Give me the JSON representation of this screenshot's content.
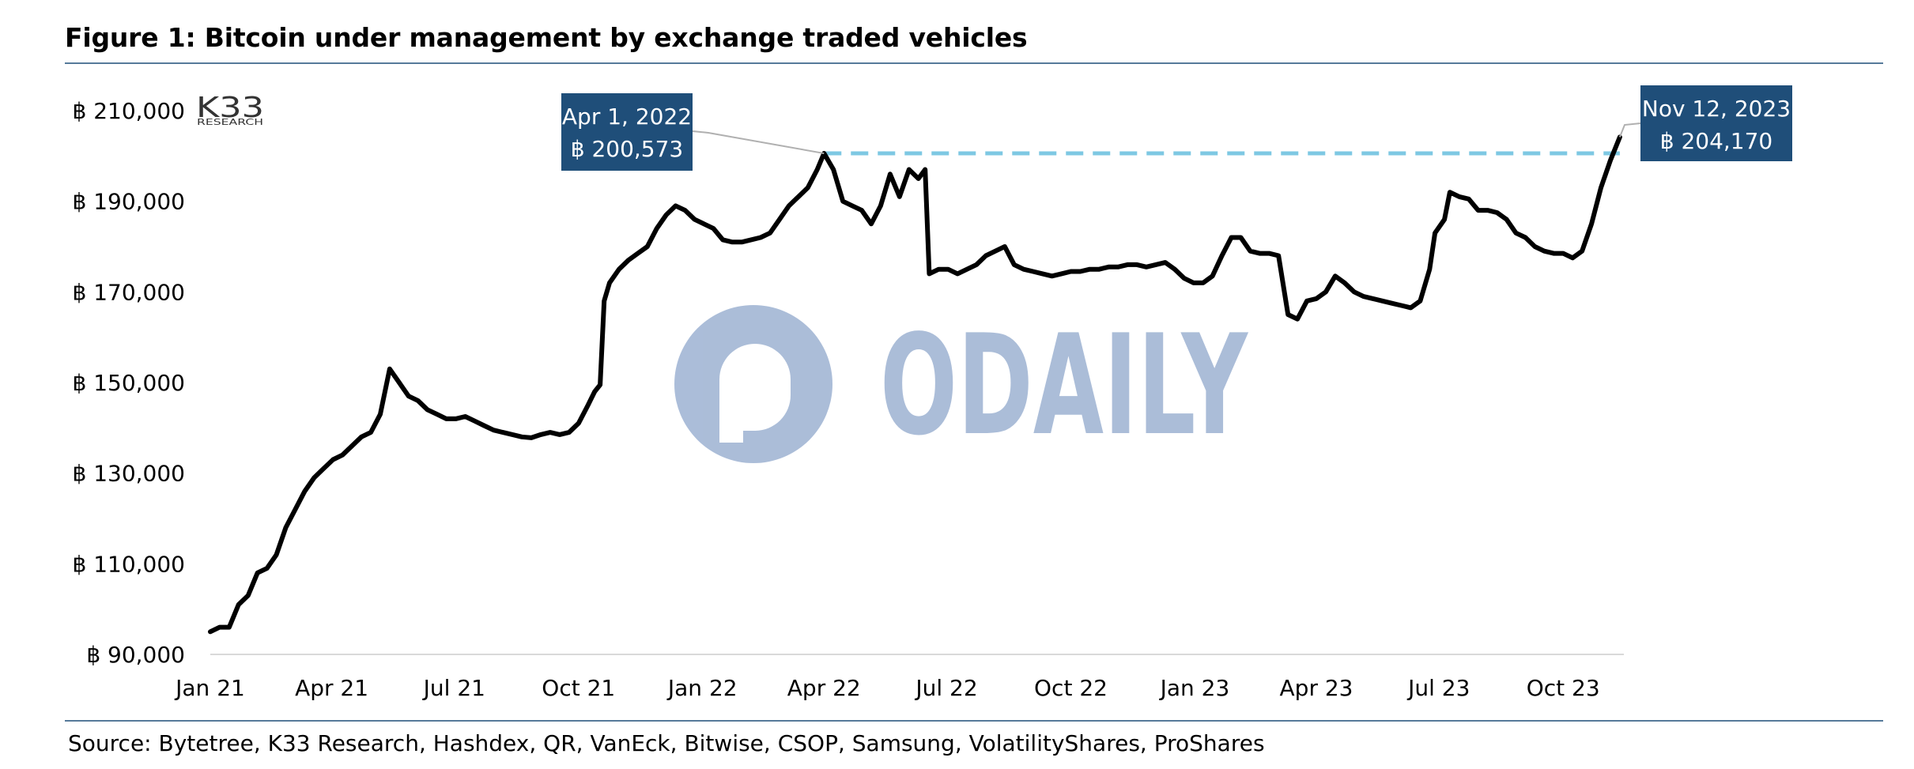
{
  "header": {
    "title": "Figure 1: Bitcoin under management by exchange traded vehicles"
  },
  "footer": {
    "source": "Source: Bytetree, K33 Research, Hashdex, QR, VanEck, Bitwise, CSOP, Samsung, VolatilityShares, ProShares"
  },
  "logo": {
    "brand": "K33",
    "sub": "RESEARCH"
  },
  "watermark": {
    "text": "ODAILY"
  },
  "colors": {
    "line": "#000000",
    "reference_line": "#7ec8e3",
    "callout_bg": "#1f4e79",
    "rule": "#1f4e79",
    "watermark": "#8fa7cc"
  },
  "chart_data": {
    "type": "line",
    "title": "Figure 1: Bitcoin under management by exchange traded vehicles",
    "xlabel": "",
    "ylabel": "",
    "ylim": [
      90000,
      210000
    ],
    "yticks": [
      90000,
      110000,
      130000,
      150000,
      170000,
      190000,
      210000
    ],
    "ytick_labels": [
      "฿ 90,000",
      "฿ 110,000",
      "฿ 130,000",
      "฿ 150,000",
      "฿ 170,000",
      "฿ 190,000",
      "฿ 210,000"
    ],
    "xtick_labels": [
      "Jan 21",
      "Apr 21",
      "Jul 21",
      "Oct 21",
      "Jan 22",
      "Apr 22",
      "Jul 22",
      "Oct 22",
      "Jan 23",
      "Apr 23",
      "Jul 23",
      "Oct 23"
    ],
    "xtick_dates": [
      "2021-01-01",
      "2021-04-01",
      "2021-07-01",
      "2021-10-01",
      "2022-01-01",
      "2022-04-01",
      "2022-07-01",
      "2022-10-01",
      "2023-01-01",
      "2023-04-01",
      "2023-07-01",
      "2023-10-01"
    ],
    "xlim": [
      "2021-01-01",
      "2023-11-15"
    ],
    "grid": false,
    "series": [
      {
        "points": [
          [
            "2021-01-01",
            95000
          ],
          [
            "2021-01-08",
            96000
          ],
          [
            "2021-01-15",
            96000
          ],
          [
            "2021-01-22",
            101000
          ],
          [
            "2021-01-29",
            103000
          ],
          [
            "2021-02-05",
            108000
          ],
          [
            "2021-02-12",
            109000
          ],
          [
            "2021-02-19",
            112000
          ],
          [
            "2021-02-26",
            118000
          ],
          [
            "2021-03-05",
            122000
          ],
          [
            "2021-03-12",
            126000
          ],
          [
            "2021-03-19",
            129000
          ],
          [
            "2021-03-26",
            131000
          ],
          [
            "2021-04-02",
            133000
          ],
          [
            "2021-04-09",
            134000
          ],
          [
            "2021-04-16",
            136000
          ],
          [
            "2021-04-23",
            138000
          ],
          [
            "2021-04-30",
            139000
          ],
          [
            "2021-05-07",
            143000
          ],
          [
            "2021-05-14",
            153000
          ],
          [
            "2021-05-21",
            150000
          ],
          [
            "2021-05-28",
            147000
          ],
          [
            "2021-06-04",
            146000
          ],
          [
            "2021-06-11",
            144000
          ],
          [
            "2021-06-18",
            143000
          ],
          [
            "2021-06-25",
            142000
          ],
          [
            "2021-07-02",
            142000
          ],
          [
            "2021-07-09",
            142500
          ],
          [
            "2021-07-16",
            141500
          ],
          [
            "2021-07-23",
            140500
          ],
          [
            "2021-07-30",
            139500
          ],
          [
            "2021-08-06",
            139000
          ],
          [
            "2021-08-13",
            138500
          ],
          [
            "2021-08-20",
            138000
          ],
          [
            "2021-08-27",
            137800
          ],
          [
            "2021-09-03",
            138500
          ],
          [
            "2021-09-10",
            139000
          ],
          [
            "2021-09-17",
            138500
          ],
          [
            "2021-09-24",
            139000
          ],
          [
            "2021-10-01",
            141000
          ],
          [
            "2021-10-08",
            145000
          ],
          [
            "2021-10-13",
            148000
          ],
          [
            "2021-10-17",
            149500
          ],
          [
            "2021-10-20",
            168000
          ],
          [
            "2021-10-24",
            172000
          ],
          [
            "2021-10-31",
            175000
          ],
          [
            "2021-11-07",
            177000
          ],
          [
            "2021-11-14",
            178500
          ],
          [
            "2021-11-21",
            180000
          ],
          [
            "2021-11-28",
            184000
          ],
          [
            "2021-12-05",
            187000
          ],
          [
            "2021-12-12",
            189000
          ],
          [
            "2021-12-19",
            188000
          ],
          [
            "2021-12-26",
            186000
          ],
          [
            "2022-01-02",
            185000
          ],
          [
            "2022-01-09",
            184000
          ],
          [
            "2022-01-16",
            181500
          ],
          [
            "2022-01-23",
            181000
          ],
          [
            "2022-01-30",
            181000
          ],
          [
            "2022-02-06",
            181500
          ],
          [
            "2022-02-13",
            182000
          ],
          [
            "2022-02-20",
            183000
          ],
          [
            "2022-02-27",
            186000
          ],
          [
            "2022-03-06",
            189000
          ],
          [
            "2022-03-13",
            191000
          ],
          [
            "2022-03-20",
            193000
          ],
          [
            "2022-03-27",
            197000
          ],
          [
            "2022-04-01",
            200573
          ],
          [
            "2022-04-08",
            197000
          ],
          [
            "2022-04-15",
            190000
          ],
          [
            "2022-04-22",
            189000
          ],
          [
            "2022-04-29",
            188000
          ],
          [
            "2022-05-06",
            185000
          ],
          [
            "2022-05-13",
            189000
          ],
          [
            "2022-05-20",
            196000
          ],
          [
            "2022-05-27",
            191000
          ],
          [
            "2022-06-03",
            197000
          ],
          [
            "2022-06-10",
            195000
          ],
          [
            "2022-06-15",
            197000
          ],
          [
            "2022-06-18",
            174000
          ],
          [
            "2022-06-25",
            175000
          ],
          [
            "2022-07-02",
            175000
          ],
          [
            "2022-07-09",
            174000
          ],
          [
            "2022-07-16",
            175000
          ],
          [
            "2022-07-23",
            176000
          ],
          [
            "2022-07-30",
            178000
          ],
          [
            "2022-08-06",
            179000
          ],
          [
            "2022-08-13",
            180000
          ],
          [
            "2022-08-20",
            176000
          ],
          [
            "2022-08-27",
            175000
          ],
          [
            "2022-09-03",
            174500
          ],
          [
            "2022-09-10",
            174000
          ],
          [
            "2022-09-17",
            173500
          ],
          [
            "2022-09-24",
            174000
          ],
          [
            "2022-10-01",
            174500
          ],
          [
            "2022-10-08",
            174500
          ],
          [
            "2022-10-15",
            175000
          ],
          [
            "2022-10-22",
            175000
          ],
          [
            "2022-10-29",
            175500
          ],
          [
            "2022-11-05",
            175500
          ],
          [
            "2022-11-12",
            176000
          ],
          [
            "2022-11-19",
            176000
          ],
          [
            "2022-11-26",
            175500
          ],
          [
            "2022-12-03",
            176000
          ],
          [
            "2022-12-10",
            176500
          ],
          [
            "2022-12-17",
            175000
          ],
          [
            "2022-12-24",
            173000
          ],
          [
            "2022-12-31",
            172000
          ],
          [
            "2023-01-07",
            172000
          ],
          [
            "2023-01-14",
            173500
          ],
          [
            "2023-01-21",
            178000
          ],
          [
            "2023-01-28",
            182000
          ],
          [
            "2023-02-04",
            182000
          ],
          [
            "2023-02-11",
            179000
          ],
          [
            "2023-02-18",
            178500
          ],
          [
            "2023-02-25",
            178500
          ],
          [
            "2023-03-04",
            178000
          ],
          [
            "2023-03-11",
            165000
          ],
          [
            "2023-03-18",
            164000
          ],
          [
            "2023-03-25",
            168000
          ],
          [
            "2023-04-01",
            168500
          ],
          [
            "2023-04-08",
            170000
          ],
          [
            "2023-04-15",
            173500
          ],
          [
            "2023-04-22",
            172000
          ],
          [
            "2023-04-29",
            170000
          ],
          [
            "2023-05-06",
            169000
          ],
          [
            "2023-05-13",
            168500
          ],
          [
            "2023-05-20",
            168000
          ],
          [
            "2023-05-27",
            167500
          ],
          [
            "2023-06-03",
            167000
          ],
          [
            "2023-06-10",
            166500
          ],
          [
            "2023-06-17",
            168000
          ],
          [
            "2023-06-24",
            175000
          ],
          [
            "2023-06-28",
            183000
          ],
          [
            "2023-07-05",
            186000
          ],
          [
            "2023-07-09",
            192000
          ],
          [
            "2023-07-16",
            191000
          ],
          [
            "2023-07-23",
            190500
          ],
          [
            "2023-07-30",
            188000
          ],
          [
            "2023-08-06",
            188000
          ],
          [
            "2023-08-13",
            187500
          ],
          [
            "2023-08-20",
            186000
          ],
          [
            "2023-08-27",
            183000
          ],
          [
            "2023-09-03",
            182000
          ],
          [
            "2023-09-10",
            180000
          ],
          [
            "2023-09-17",
            179000
          ],
          [
            "2023-09-24",
            178500
          ],
          [
            "2023-10-01",
            178500
          ],
          [
            "2023-10-08",
            177500
          ],
          [
            "2023-10-15",
            179000
          ],
          [
            "2023-10-22",
            185000
          ],
          [
            "2023-10-29",
            193000
          ],
          [
            "2023-11-05",
            199000
          ],
          [
            "2023-11-12",
            204170
          ]
        ]
      }
    ],
    "reference_line": {
      "y": 200573,
      "from": "2022-04-01",
      "to": "2023-11-12",
      "style": "dashed"
    },
    "annotations": [
      {
        "date": "2022-04-01",
        "value": 200573,
        "label_date": "Apr 1, 2022",
        "label_value": "฿ 200,573"
      },
      {
        "date": "2023-11-12",
        "value": 204170,
        "label_date": "Nov 12, 2023",
        "label_value": "฿ 204,170"
      }
    ]
  }
}
